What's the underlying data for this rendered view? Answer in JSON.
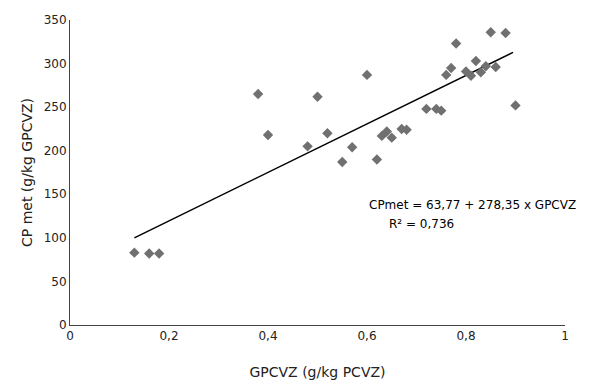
{
  "chart_data": {
    "type": "scatter",
    "xlabel": "GPCVZ (g/kg PCVZ)",
    "ylabel": "CP met (g/kg GPCVZ)",
    "series": [
      {
        "type": "scatter",
        "marker": "diamond",
        "color": "#707070",
        "x": [
          0.13,
          0.16,
          0.18,
          0.38,
          0.4,
          0.48,
          0.5,
          0.52,
          0.55,
          0.57,
          0.6,
          0.62,
          0.63,
          0.64,
          0.65,
          0.67,
          0.68,
          0.72,
          0.74,
          0.75,
          0.76,
          0.77,
          0.78,
          0.8,
          0.81,
          0.82,
          0.83,
          0.84,
          0.85,
          0.86,
          0.88,
          0.9
        ],
        "values": [
          83,
          82,
          82,
          265,
          218,
          205,
          262,
          220,
          187,
          204,
          287,
          190,
          217,
          222,
          215,
          225,
          224,
          248,
          248,
          246,
          287,
          295,
          323,
          291,
          286,
          303,
          290,
          297,
          336,
          296,
          335,
          252
        ]
      },
      {
        "type": "line",
        "line_style": "solid",
        "color": "#000000",
        "x": [
          0.13,
          0.895
        ],
        "values": [
          99.9555,
          312.89325
        ]
      }
    ],
    "annotations": [
      {
        "text": "CPmet = 63,77 + 278,35 x GPCVZ",
        "x": 0.6,
        "y": 138
      },
      {
        "text": "R² = 0,736",
        "x": 0.64,
        "y": 116
      }
    ],
    "xlim": [
      0,
      1.0
    ],
    "ylim": [
      0,
      350
    ],
    "xticks": [
      0,
      {
        "value": 0.2,
        "label": "0,2"
      },
      {
        "value": 0.4,
        "label": "0,4"
      },
      {
        "value": 0.6,
        "label": "0,6"
      },
      {
        "value": 0.8,
        "label": "0,8"
      },
      1
    ],
    "yticks": [
      0,
      50,
      100,
      150,
      200,
      250,
      300,
      350
    ],
    "grid": false
  }
}
